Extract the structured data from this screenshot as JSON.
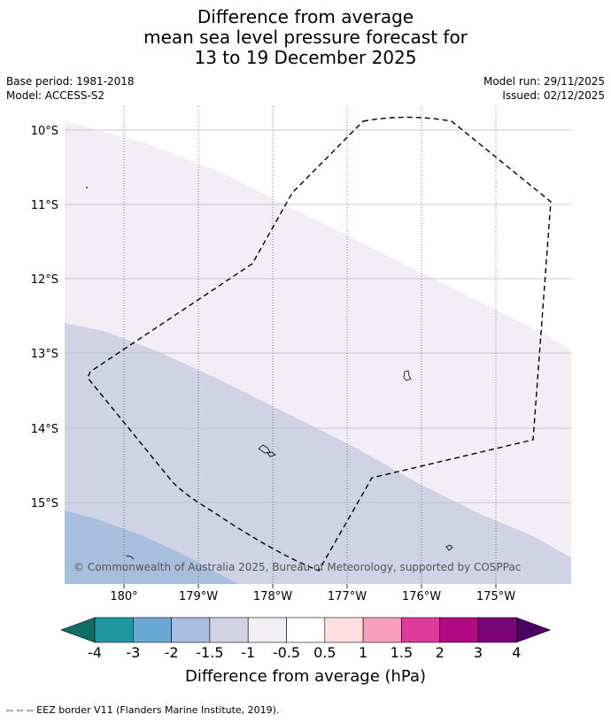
{
  "title": {
    "line1": "Difference from average",
    "line2": "mean sea level pressure forecast for",
    "line3": "13 to 19 December 2025"
  },
  "meta": {
    "base_period": "Base period: 1981-2018",
    "model": "Model: ACCESS-S2",
    "model_run": "Model run: 29/11/2025",
    "issued": "Issued: 02/12/2025"
  },
  "map": {
    "lat_labels": [
      "10°S",
      "11°S",
      "12°S",
      "13°S",
      "14°S",
      "15°S"
    ],
    "lon_labels": [
      "180°",
      "179°W",
      "178°W",
      "177°W",
      "176°W",
      "175°W"
    ],
    "copyright": "© Commonwealth of Australia 2025, Bureau of Meteorology, supported by COSPPac"
  },
  "colorbar": {
    "labels": [
      "-4",
      "-3",
      "-2",
      "-1.5",
      "-1",
      "-0.5",
      "0.5",
      "1",
      "1.5",
      "2",
      "3",
      "4"
    ],
    "colors": [
      "#0e6e63",
      "#1f96a0",
      "#6aa9d3",
      "#a8bedf",
      "#d0d2e6",
      "#f2eef6",
      "#ffffff",
      "#ffdede",
      "#f9a0be",
      "#df3b9d",
      "#b20a82",
      "#7b0478",
      "#4b0064"
    ],
    "title": "Difference from average (hPa)"
  },
  "footer": {
    "legend": "--  --  -- EEZ border V11 (Flanders Marine Institute, 2019)."
  }
}
